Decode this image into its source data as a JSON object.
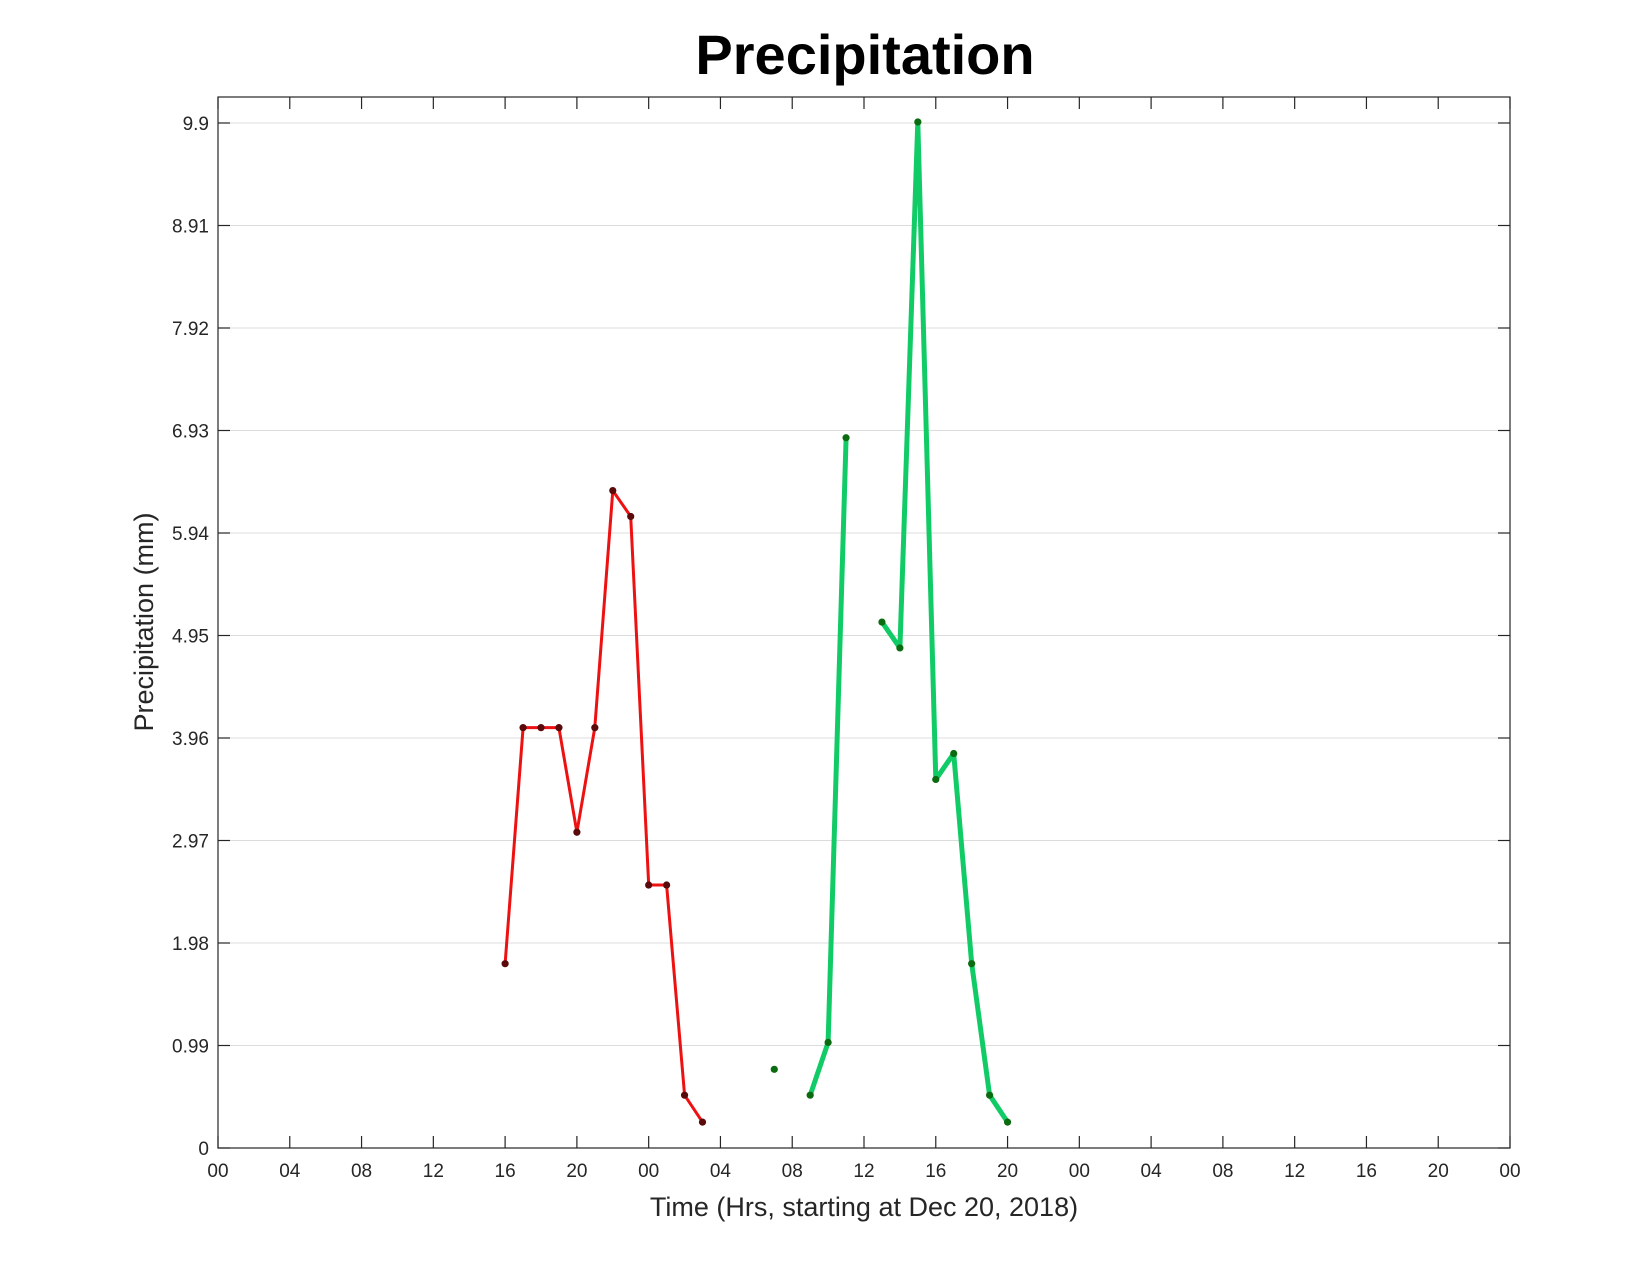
{
  "chart_data": {
    "type": "line",
    "title": "Precipitation",
    "xlabel": "Time (Hrs, starting at Dec 20, 2018)",
    "ylabel": "Precipitation (mm)",
    "xlim": [
      0,
      72
    ],
    "ylim": [
      0,
      9.9
    ],
    "x_ticks": [
      0,
      4,
      8,
      12,
      16,
      20,
      24,
      28,
      32,
      36,
      40,
      44,
      48,
      52,
      56,
      60,
      64,
      68,
      72
    ],
    "x_tick_labels": [
      "00",
      "04",
      "08",
      "12",
      "16",
      "20",
      "00",
      "04",
      "08",
      "12",
      "16",
      "20",
      "00",
      "04",
      "08",
      "12",
      "16",
      "20",
      "00"
    ],
    "y_ticks": [
      0,
      0.99,
      1.98,
      2.97,
      3.96,
      4.95,
      5.94,
      6.93,
      7.92,
      8.91,
      9.9
    ],
    "y_tick_labels": [
      "0",
      "0.99",
      "1.98",
      "2.97",
      "3.96",
      "4.95",
      "5.94",
      "6.93",
      "7.92",
      "8.91",
      "9.9"
    ],
    "grid": true,
    "series": [
      {
        "color": "#ee1111",
        "marker_color": "#5a0a0a",
        "points": [
          [
            16,
            1.78
          ],
          [
            17,
            4.06
          ],
          [
            18,
            4.06
          ],
          [
            19,
            4.06
          ],
          [
            20,
            3.05
          ],
          [
            21,
            4.06
          ],
          [
            22,
            6.35
          ],
          [
            23,
            6.1
          ],
          [
            24,
            2.54
          ],
          [
            25,
            2.54
          ],
          [
            26,
            0.51
          ],
          [
            27,
            0.25
          ]
        ]
      },
      {
        "color": "#11cc66",
        "marker_color": "#0b6b10",
        "points": [
          [
            31,
            0.76
          ],
          [
            32,
            null
          ],
          [
            33,
            0.51
          ],
          [
            34,
            1.02
          ],
          [
            35,
            6.86
          ],
          [
            36,
            null
          ],
          [
            37,
            5.08
          ],
          [
            38,
            4.83
          ],
          [
            39,
            9.91
          ],
          [
            40,
            3.56
          ],
          [
            41,
            3.81
          ],
          [
            42,
            1.78
          ],
          [
            43,
            0.51
          ],
          [
            44,
            0.25
          ]
        ]
      }
    ]
  }
}
